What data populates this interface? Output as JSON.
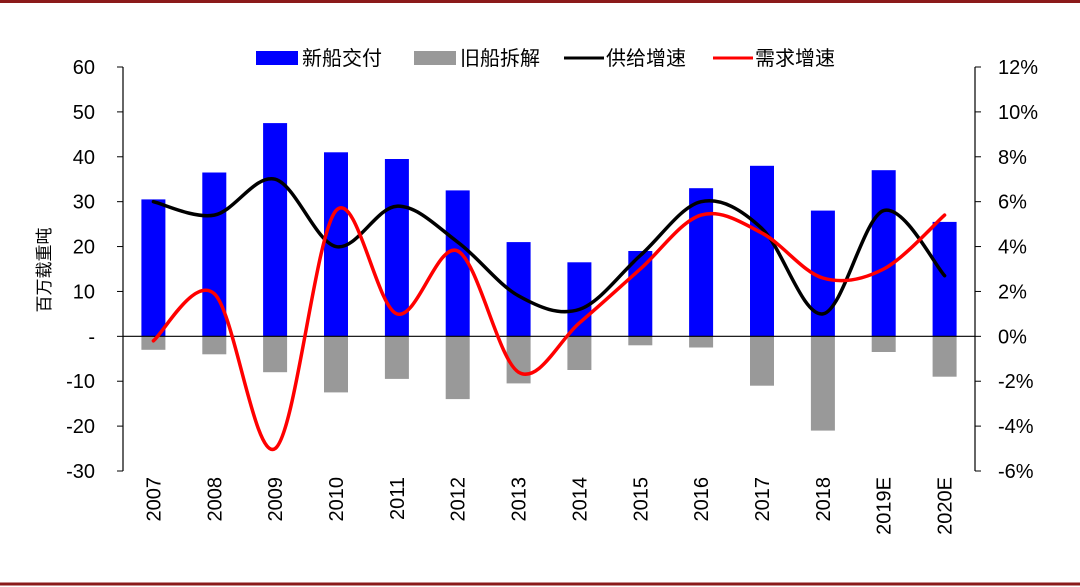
{
  "chart_data": {
    "type": "bar+line",
    "categories": [
      "2007",
      "2008",
      "2009",
      "2010",
      "2011",
      "2012",
      "2013",
      "2014",
      "2015",
      "2016",
      "2017",
      "2018",
      "2019E",
      "2020E"
    ],
    "series": [
      {
        "name": "新船交付",
        "type": "bar",
        "axis": "left",
        "values": [
          30.5,
          36.5,
          47.5,
          41,
          39.5,
          32.5,
          21,
          16.5,
          19,
          33,
          38,
          28,
          37,
          25.5
        ]
      },
      {
        "name": "旧船拆解",
        "type": "bar",
        "axis": "left",
        "values": [
          -3,
          -4,
          -8,
          -12.5,
          -9.5,
          -14,
          -10.5,
          -7.5,
          -2,
          -2.5,
          -11,
          -21,
          -3.5,
          -9
        ]
      },
      {
        "name": "供给增速",
        "type": "line",
        "axis": "right",
        "values": [
          6.0,
          5.4,
          7.0,
          4.0,
          5.8,
          4.2,
          1.8,
          1.2,
          3.6,
          6.0,
          4.8,
          1.0,
          5.6,
          2.7
        ]
      },
      {
        "name": "需求增速",
        "type": "line",
        "axis": "right",
        "values": [
          -0.2,
          1.9,
          -5.0,
          5.6,
          1.0,
          3.8,
          -1.6,
          0.6,
          3.0,
          5.4,
          4.6,
          2.6,
          3.0,
          5.4
        ]
      }
    ],
    "ylabel": "百万载重吨",
    "ylim": [
      -30,
      60
    ],
    "yticks": [
      "-30",
      "-20",
      "-10",
      "-",
      "10",
      "20",
      "30",
      "40",
      "50",
      "60"
    ],
    "ylim_right": [
      -6,
      12
    ],
    "yticks_right": [
      "-6%",
      "-4%",
      "-2%",
      "0%",
      "2%",
      "4%",
      "6%",
      "8%",
      "10%",
      "12%"
    ],
    "legend_position": "top",
    "colors": {
      "新船交付": "#0000ff",
      "旧船拆解": "#999999",
      "供给增速": "#000000",
      "需求增速": "#ff0000",
      "frame": "#8b0000"
    }
  }
}
